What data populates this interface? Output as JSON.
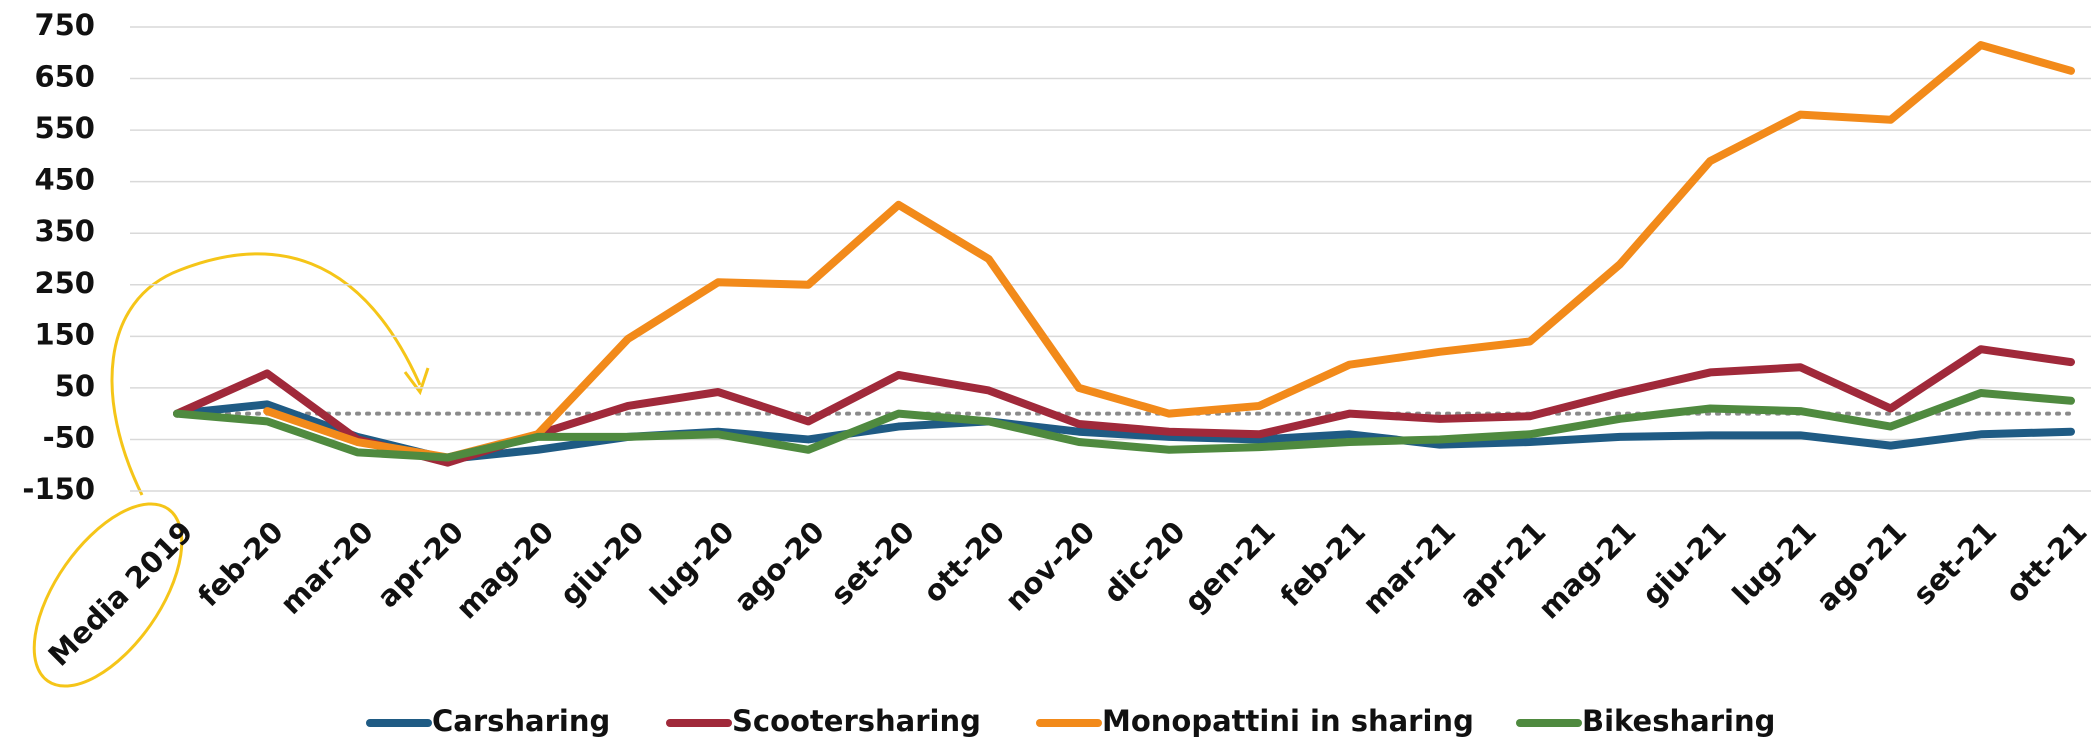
{
  "chart_data": {
    "type": "line",
    "categories": [
      "Media 2019",
      "feb-20",
      "mar-20",
      "apr-20",
      "mag-20",
      "giu-20",
      "lug-20",
      "ago-20",
      "set-20",
      "ott-20",
      "nov-20",
      "dic-20",
      "gen-21",
      "feb-21",
      "mar-21",
      "apr-21",
      "mag-21",
      "giu-21",
      "lug-21",
      "ago-21",
      "set-21",
      "ott-21"
    ],
    "series": [
      {
        "name": "Carsharing",
        "color": "#1f5b84",
        "values": [
          0,
          18,
          -45,
          -88,
          -70,
          -45,
          -35,
          -50,
          -25,
          -15,
          -35,
          -45,
          -50,
          -40,
          -60,
          -55,
          -45,
          -42,
          -42,
          -62,
          -40,
          -35
        ]
      },
      {
        "name": "Scootersharing",
        "color": "#a0293a",
        "values": [
          0,
          78,
          -50,
          -95,
          -40,
          15,
          42,
          -15,
          75,
          45,
          -20,
          -35,
          -40,
          0,
          -10,
          -5,
          40,
          80,
          90,
          10,
          125,
          100
        ]
      },
      {
        "name": "Monopattini in sharing",
        "color": "#f28a1a",
        "values": [
          null,
          5,
          -55,
          -85,
          -40,
          145,
          255,
          250,
          405,
          300,
          50,
          0,
          15,
          95,
          120,
          140,
          290,
          490,
          580,
          570,
          715,
          665
        ]
      },
      {
        "name": "Bikesharing",
        "color": "#4f8a3f",
        "values": [
          0,
          -15,
          -75,
          -85,
          -45,
          -45,
          -40,
          -70,
          0,
          -15,
          -55,
          -70,
          -65,
          -55,
          -50,
          -40,
          -10,
          10,
          5,
          -25,
          40,
          25
        ]
      }
    ],
    "ylim": [
      -150,
      750
    ],
    "yticks": [
      -150,
      -50,
      50,
      150,
      250,
      350,
      450,
      550,
      650,
      750
    ],
    "grid": true,
    "reference_line": 0,
    "legend": "bottom"
  }
}
